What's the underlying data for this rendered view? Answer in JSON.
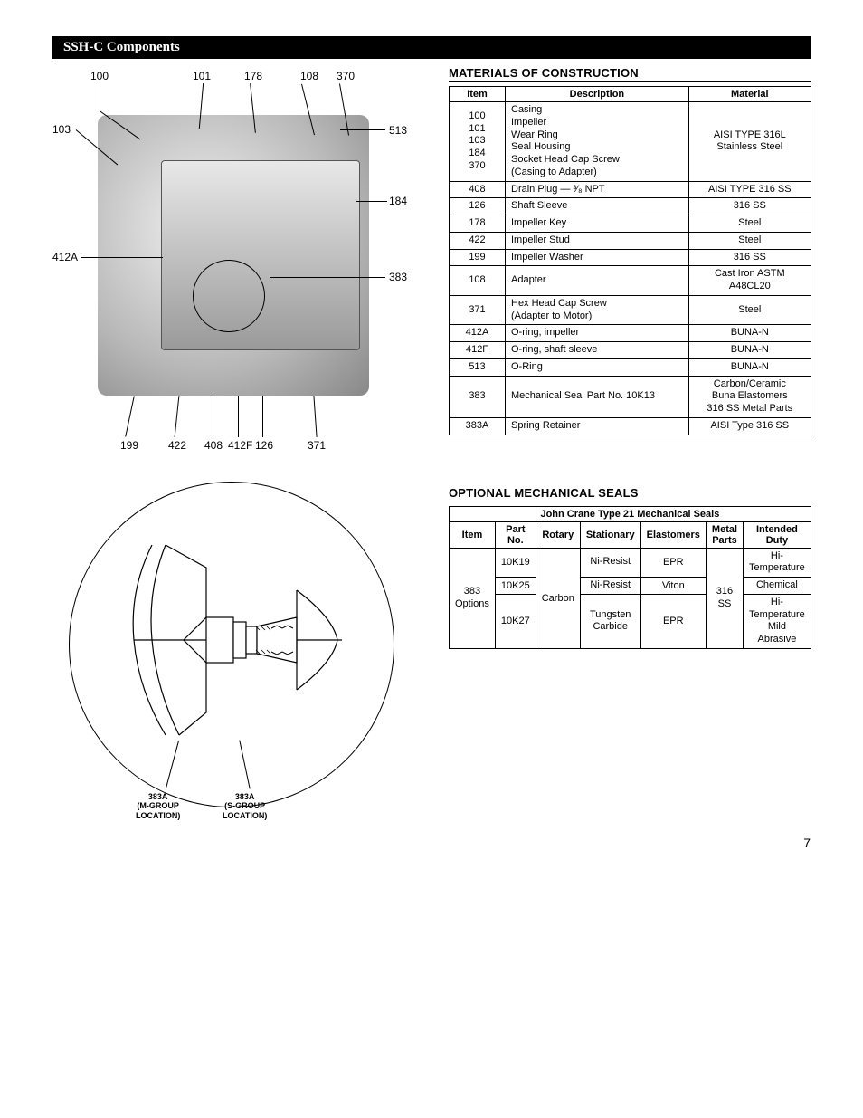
{
  "title_bar": "SSH-C Components",
  "page_number": "7",
  "top_diagram": {
    "labels_top": [
      "100",
      "101",
      "178",
      "108",
      "370"
    ],
    "labels_left": [
      "103",
      "412A"
    ],
    "labels_right": [
      "513",
      "184",
      "383"
    ],
    "labels_bottom": [
      "199",
      "422",
      "408",
      "412F",
      "126",
      "371"
    ]
  },
  "bottom_diagram": {
    "left_label": "383A\n(M-GROUP\nLOCATION)",
    "right_label": "383A\n(S-GROUP\nLOCATION)"
  },
  "materials": {
    "heading": "Materials of Construction",
    "columns": [
      "Item",
      "Description",
      "Material"
    ],
    "rows": [
      {
        "item": "100\n101\n103\n184\n370",
        "desc": "Casing\nImpeller\nWear Ring\nSeal Housing\nSocket Head Cap Screw\n(Casing to Adapter)",
        "mat": "AISI TYPE 316L\nStainless Steel"
      },
      {
        "item": "408",
        "desc": "Drain Plug — ³⁄₈ NPT",
        "mat": "AISI TYPE 316 SS"
      },
      {
        "item": "126",
        "desc": "Shaft Sleeve",
        "mat": "316 SS"
      },
      {
        "item": "178",
        "desc": "Impeller Key",
        "mat": "Steel"
      },
      {
        "item": "422",
        "desc": "Impeller Stud",
        "mat": "Steel"
      },
      {
        "item": "199",
        "desc": "Impeller Washer",
        "mat": "316 SS"
      },
      {
        "item": "108",
        "desc": "Adapter",
        "mat": "Cast Iron ASTM A48CL20"
      },
      {
        "item": "371",
        "desc": "Hex Head Cap Screw\n(Adapter to Motor)",
        "mat": "Steel"
      },
      {
        "item": "412A",
        "desc": "O-ring, impeller",
        "mat": "BUNA-N"
      },
      {
        "item": "412F",
        "desc": "O-ring, shaft sleeve",
        "mat": "BUNA-N"
      },
      {
        "item": "513",
        "desc": "O-Ring",
        "mat": "BUNA-N"
      },
      {
        "item": "383",
        "desc": "Mechanical Seal Part No. 10K13",
        "mat": "Carbon/Ceramic\nBuna Elastomers\n316 SS Metal Parts"
      },
      {
        "item": "383A",
        "desc": "Spring Retainer",
        "mat": "AISI Type 316 SS"
      }
    ]
  },
  "seals": {
    "heading": "Optional Mechanical Seals",
    "super_header": "John Crane Type 21 Mechanical Seals",
    "columns": [
      "Item",
      "Part No.",
      "Rotary",
      "Stationary",
      "Elastomers",
      "Metal Parts",
      "Intended Duty"
    ],
    "item_span": "383\nOptions",
    "rotary_span": "Carbon",
    "metal_span": "316\nSS",
    "rows": [
      {
        "part": "10K19",
        "stationary": "Ni-Resist",
        "elastomers": "EPR",
        "duty": "Hi-Temperature"
      },
      {
        "part": "10K25",
        "stationary": "Ni-Resist",
        "elastomers": "Viton",
        "duty": "Chemical"
      },
      {
        "part": "10K27",
        "stationary": "Tungsten\nCarbide",
        "elastomers": "EPR",
        "duty": "Hi-Temperature\nMild Abrasive"
      }
    ]
  }
}
